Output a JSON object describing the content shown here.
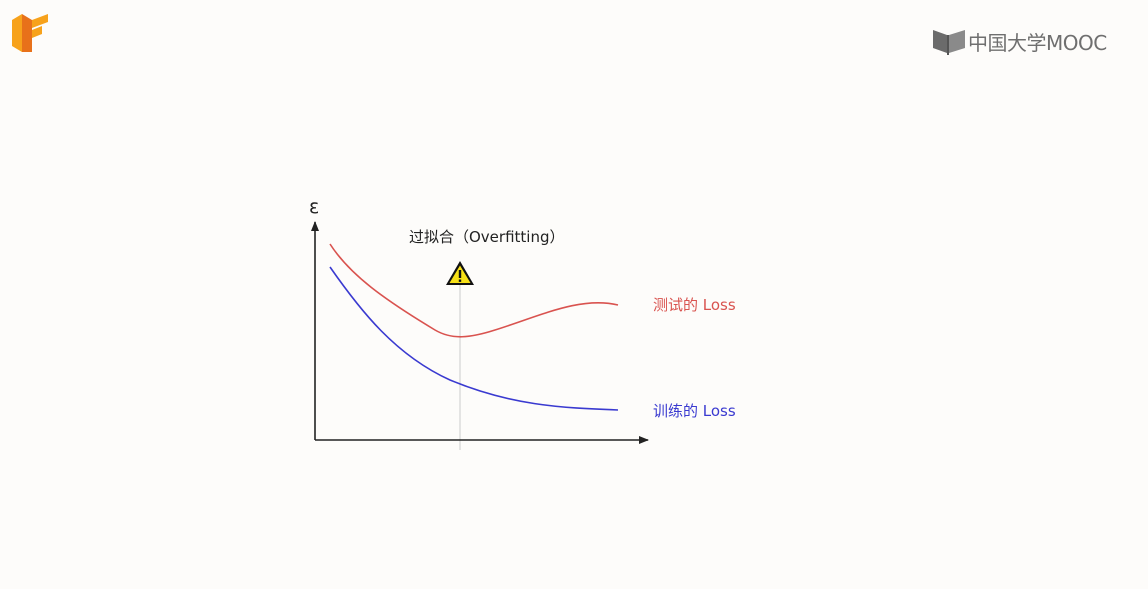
{
  "header": {
    "brand_text": "中国大学MOOC",
    "brand_logo_icon": "book-icon",
    "tf_logo_icon": "tensorflow-logo-icon"
  },
  "diagram": {
    "y_axis_symbol": "ε",
    "title": "过拟合（Overfitting）",
    "warning_icon": "warning-icon",
    "test_label": "测试的 Loss",
    "train_label": "训练的 Loss",
    "colors": {
      "test": "#d9534f",
      "train": "#3a3ad0",
      "axis": "#222222",
      "marker": "#cccccc",
      "warning_fill": "#f7e017"
    }
  }
}
